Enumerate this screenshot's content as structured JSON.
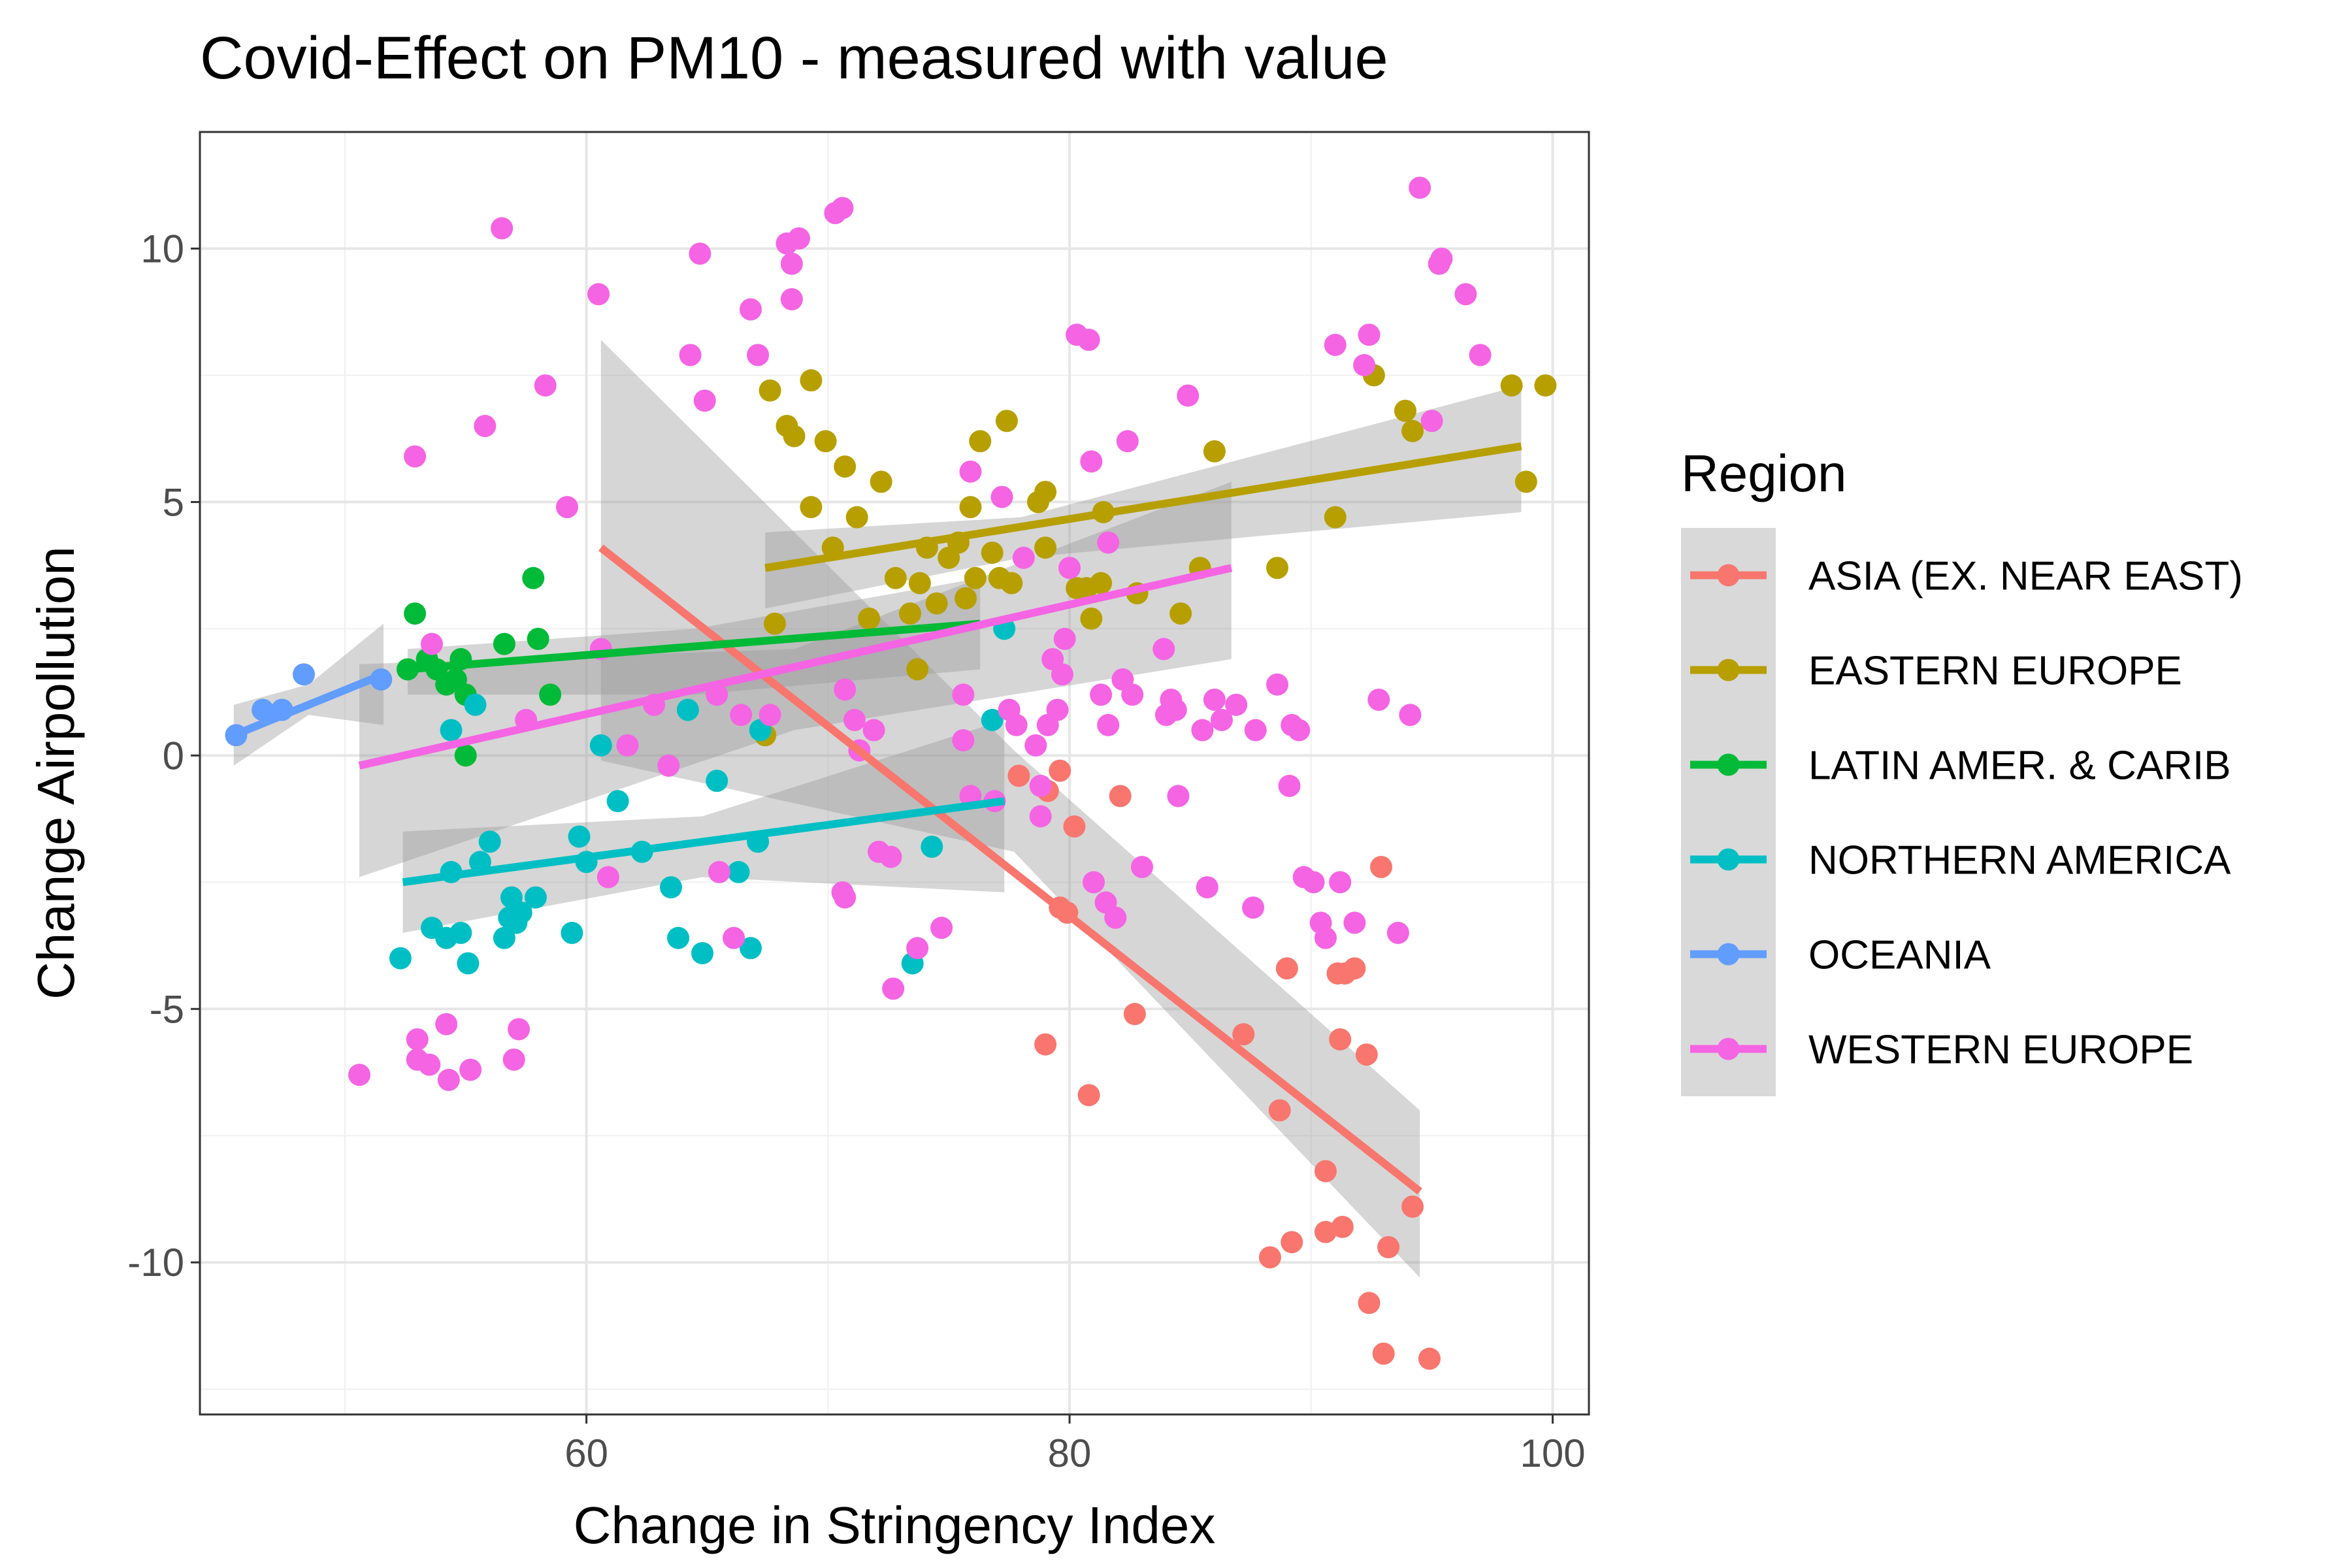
{
  "chart_data": {
    "type": "scatter",
    "title": "Covid-Effect on PM10 - measured with value",
    "xlabel": "Change in Stringency Index",
    "ylabel": "Change Airpollution",
    "xlim": [
      44,
      101.5
    ],
    "ylim": [
      -13,
      12.3
    ],
    "x_ticks": [
      60,
      80,
      100
    ],
    "x_tick_labels": [
      "60",
      "80",
      "100"
    ],
    "y_ticks": [
      -10,
      -5,
      0,
      5,
      10
    ],
    "y_tick_labels": [
      "-10",
      "-5",
      "0",
      "5",
      "10"
    ],
    "grid": true,
    "legend_title": "Region",
    "legend_position": "right",
    "series": [
      {
        "name": "ASIA (EX. NEAR EAST)",
        "color": "#F8766D",
        "points": [
          [
            77.9,
            -0.4
          ],
          [
            79.1,
            -0.7
          ],
          [
            79.6,
            -0.3
          ],
          [
            79.6,
            -3.0
          ],
          [
            79.9,
            -3.1
          ],
          [
            80.2,
            -1.4
          ],
          [
            82.1,
            -0.8
          ],
          [
            82.7,
            -5.1
          ],
          [
            79.0,
            -5.7
          ],
          [
            80.8,
            -6.7
          ],
          [
            87.2,
            -5.5
          ],
          [
            88.3,
            -9.9
          ],
          [
            88.7,
            -7.0
          ],
          [
            89.0,
            -4.2
          ],
          [
            89.2,
            -9.6
          ],
          [
            90.6,
            -8.2
          ],
          [
            90.6,
            -9.4
          ],
          [
            91.1,
            -4.3
          ],
          [
            91.3,
            -9.3
          ],
          [
            91.2,
            -5.6
          ],
          [
            91.4,
            -4.3
          ],
          [
            91.8,
            -4.2
          ],
          [
            92.3,
            -5.9
          ],
          [
            92.4,
            -10.8
          ],
          [
            92.9,
            -2.2
          ],
          [
            93.0,
            -11.8
          ],
          [
            93.2,
            -9.7
          ],
          [
            94.2,
            -8.9
          ],
          [
            94.9,
            -11.9
          ]
        ],
        "trend": {
          "x": [
            60.6,
            94.5
          ],
          "y": [
            4.1,
            -8.6
          ]
        },
        "ribbon": {
          "x": [
            60.6,
            77.7,
            94.5
          ],
          "upper": [
            8.2,
            0.1,
            -7.0
          ],
          "lower": [
            -0.1,
            -1.9,
            -10.3
          ]
        }
      },
      {
        "name": "EASTERN EUROPE",
        "color": "#B79F00",
        "points": [
          [
            67.4,
            0.4
          ],
          [
            67.6,
            7.2
          ],
          [
            67.8,
            2.6
          ],
          [
            68.3,
            6.5
          ],
          [
            68.6,
            6.3
          ],
          [
            69.3,
            4.9
          ],
          [
            69.3,
            7.4
          ],
          [
            69.9,
            6.2
          ],
          [
            70.2,
            4.1
          ],
          [
            70.7,
            5.7
          ],
          [
            71.2,
            4.7
          ],
          [
            71.7,
            2.7
          ],
          [
            72.2,
            5.4
          ],
          [
            72.8,
            3.5
          ],
          [
            73.4,
            2.8
          ],
          [
            73.7,
            1.7
          ],
          [
            73.8,
            3.4
          ],
          [
            74.1,
            4.1
          ],
          [
            74.5,
            3.0
          ],
          [
            75.0,
            3.9
          ],
          [
            75.4,
            4.2
          ],
          [
            75.7,
            3.1
          ],
          [
            75.9,
            4.9
          ],
          [
            76.1,
            3.5
          ],
          [
            76.3,
            6.2
          ],
          [
            76.8,
            4.0
          ],
          [
            77.1,
            3.5
          ],
          [
            77.4,
            6.6
          ],
          [
            77.6,
            3.4
          ],
          [
            78.7,
            5.0
          ],
          [
            79.0,
            4.1
          ],
          [
            79.0,
            5.2
          ],
          [
            80.3,
            3.3
          ],
          [
            80.7,
            3.3
          ],
          [
            80.9,
            2.7
          ],
          [
            81.3,
            3.4
          ],
          [
            81.4,
            4.8
          ],
          [
            82.8,
            3.2
          ],
          [
            84.6,
            2.8
          ],
          [
            85.4,
            3.7
          ],
          [
            86.0,
            6.0
          ],
          [
            88.6,
            3.7
          ],
          [
            91.0,
            4.7
          ],
          [
            92.6,
            7.5
          ],
          [
            93.9,
            6.8
          ],
          [
            94.2,
            6.4
          ],
          [
            98.3,
            7.3
          ],
          [
            98.9,
            5.4
          ],
          [
            99.7,
            7.3
          ]
        ],
        "trend": {
          "x": [
            67.4,
            98.7
          ],
          "y": [
            3.7,
            6.1
          ]
        },
        "ribbon": {
          "x": [
            67.4,
            78.0,
            98.7
          ],
          "upper": [
            4.4,
            4.7,
            7.3
          ],
          "lower": [
            2.9,
            3.9,
            4.8
          ]
        }
      },
      {
        "name": "LATIN AMER. & CARIB",
        "color": "#00BA38",
        "points": [
          [
            52.6,
            1.7
          ],
          [
            52.9,
            2.8
          ],
          [
            53.4,
            1.9
          ],
          [
            53.8,
            1.7
          ],
          [
            54.2,
            1.4
          ],
          [
            54.6,
            1.5
          ],
          [
            54.8,
            1.9
          ],
          [
            55.0,
            1.2
          ],
          [
            55.0,
            0.0
          ],
          [
            56.6,
            2.2
          ],
          [
            57.8,
            3.5
          ],
          [
            58.0,
            2.3
          ],
          [
            58.5,
            1.2
          ]
        ],
        "trend": {
          "x": [
            52.6,
            76.3
          ],
          "y": [
            1.7,
            2.6
          ]
        },
        "ribbon": {
          "x": [
            52.6,
            64.5,
            76.3
          ],
          "upper": [
            2.1,
            2.5,
            3.5
          ],
          "lower": [
            1.2,
            1.2,
            1.7
          ]
        }
      },
      {
        "name": "NORTHERN AMERICA",
        "color": "#00BFC4",
        "points": [
          [
            52.3,
            -4.0
          ],
          [
            53.6,
            -3.4
          ],
          [
            54.2,
            -3.6
          ],
          [
            54.4,
            0.5
          ],
          [
            54.4,
            -2.3
          ],
          [
            54.8,
            -3.5
          ],
          [
            55.1,
            -4.1
          ],
          [
            55.4,
            1.0
          ],
          [
            55.6,
            -2.1
          ],
          [
            56.0,
            -1.7
          ],
          [
            56.6,
            -3.6
          ],
          [
            56.8,
            -3.2
          ],
          [
            56.9,
            -2.8
          ],
          [
            57.1,
            -3.3
          ],
          [
            57.3,
            -3.1
          ],
          [
            57.9,
            -2.8
          ],
          [
            59.4,
            -3.5
          ],
          [
            59.7,
            -1.6
          ],
          [
            60.0,
            -2.1
          ],
          [
            60.6,
            0.2
          ],
          [
            61.3,
            -0.9
          ],
          [
            62.3,
            -1.9
          ],
          [
            63.5,
            -2.6
          ],
          [
            63.8,
            -3.6
          ],
          [
            64.2,
            0.9
          ],
          [
            64.8,
            -3.9
          ],
          [
            65.4,
            -0.5
          ],
          [
            66.3,
            -2.3
          ],
          [
            66.8,
            -3.8
          ],
          [
            67.1,
            -1.7
          ],
          [
            67.2,
            0.5
          ],
          [
            73.5,
            -4.1
          ],
          [
            74.3,
            -1.8
          ],
          [
            76.8,
            0.7
          ],
          [
            77.3,
            2.5
          ]
        ],
        "trend": {
          "x": [
            52.4,
            77.3
          ],
          "y": [
            -2.5,
            -0.9
          ]
        },
        "ribbon": {
          "x": [
            52.4,
            64.8,
            77.3
          ],
          "upper": [
            -1.5,
            -1.2,
            0.7
          ],
          "lower": [
            -3.5,
            -2.4,
            -2.7
          ]
        }
      },
      {
        "name": "OCEANIA",
        "color": "#619CFF",
        "points": [
          [
            45.5,
            0.4
          ],
          [
            46.6,
            0.9
          ],
          [
            47.4,
            0.9
          ],
          [
            48.3,
            1.6
          ],
          [
            51.5,
            1.5
          ]
        ],
        "trend": {
          "x": [
            45.4,
            51.6
          ],
          "y": [
            0.4,
            1.6
          ]
        },
        "ribbon": {
          "x": [
            45.4,
            48.5,
            51.6
          ],
          "upper": [
            1.0,
            1.4,
            2.6
          ],
          "lower": [
            -0.2,
            0.8,
            0.6
          ]
        }
      },
      {
        "name": "WESTERN EUROPE",
        "color": "#F564E3",
        "points": [
          [
            50.6,
            -6.3
          ],
          [
            52.9,
            5.9
          ],
          [
            53.0,
            -5.6
          ],
          [
            53.0,
            -6.0
          ],
          [
            53.5,
            -6.1
          ],
          [
            53.6,
            2.2
          ],
          [
            54.2,
            -5.3
          ],
          [
            54.3,
            -6.4
          ],
          [
            55.2,
            -6.2
          ],
          [
            55.8,
            6.5
          ],
          [
            56.5,
            10.4
          ],
          [
            57.0,
            -6.0
          ],
          [
            57.2,
            -5.4
          ],
          [
            57.5,
            0.7
          ],
          [
            58.3,
            7.3
          ],
          [
            59.2,
            4.9
          ],
          [
            60.5,
            9.1
          ],
          [
            60.6,
            2.1
          ],
          [
            60.9,
            -2.4
          ],
          [
            61.7,
            0.2
          ],
          [
            62.8,
            1.0
          ],
          [
            63.4,
            -0.2
          ],
          [
            64.3,
            7.9
          ],
          [
            64.7,
            9.9
          ],
          [
            64.9,
            7.0
          ],
          [
            65.4,
            1.2
          ],
          [
            65.5,
            -2.3
          ],
          [
            66.1,
            -3.6
          ],
          [
            66.4,
            0.8
          ],
          [
            66.8,
            8.8
          ],
          [
            67.1,
            7.9
          ],
          [
            67.6,
            0.8
          ],
          [
            68.3,
            10.1
          ],
          [
            68.5,
            9.7
          ],
          [
            68.5,
            9.0
          ],
          [
            68.8,
            10.2
          ],
          [
            70.3,
            10.7
          ],
          [
            70.6,
            10.8
          ],
          [
            70.6,
            -2.7
          ],
          [
            70.7,
            -2.8
          ],
          [
            70.7,
            1.3
          ],
          [
            71.1,
            0.7
          ],
          [
            71.3,
            0.1
          ],
          [
            71.9,
            0.5
          ],
          [
            72.1,
            -1.9
          ],
          [
            72.6,
            -2.0
          ],
          [
            72.7,
            -4.6
          ],
          [
            73.7,
            -3.8
          ],
          [
            74.7,
            -3.4
          ],
          [
            75.6,
            1.2
          ],
          [
            75.6,
            0.3
          ],
          [
            75.9,
            5.6
          ],
          [
            75.9,
            -0.8
          ],
          [
            76.9,
            -0.9
          ],
          [
            77.2,
            5.1
          ],
          [
            77.5,
            0.9
          ],
          [
            77.8,
            0.6
          ],
          [
            78.1,
            3.9
          ],
          [
            78.6,
            0.2
          ],
          [
            78.8,
            -0.6
          ],
          [
            78.8,
            -1.2
          ],
          [
            79.1,
            0.6
          ],
          [
            79.3,
            1.9
          ],
          [
            79.5,
            0.9
          ],
          [
            79.7,
            1.6
          ],
          [
            79.8,
            2.3
          ],
          [
            80.0,
            3.7
          ],
          [
            80.3,
            8.3
          ],
          [
            80.8,
            8.2
          ],
          [
            80.9,
            5.8
          ],
          [
            81.0,
            -2.5
          ],
          [
            81.3,
            1.2
          ],
          [
            81.5,
            -2.9
          ],
          [
            81.6,
            0.6
          ],
          [
            81.6,
            4.2
          ],
          [
            81.9,
            -3.2
          ],
          [
            82.2,
            1.5
          ],
          [
            82.4,
            6.2
          ],
          [
            82.6,
            1.2
          ],
          [
            83.0,
            -2.2
          ],
          [
            83.9,
            2.1
          ],
          [
            84.0,
            0.8
          ],
          [
            84.2,
            1.1
          ],
          [
            84.4,
            0.9
          ],
          [
            84.5,
            -0.8
          ],
          [
            84.9,
            7.1
          ],
          [
            85.5,
            0.5
          ],
          [
            85.7,
            -2.6
          ],
          [
            86.0,
            1.1
          ],
          [
            86.3,
            0.7
          ],
          [
            86.9,
            1.0
          ],
          [
            87.6,
            -3.0
          ],
          [
            87.7,
            0.5
          ],
          [
            88.6,
            1.4
          ],
          [
            89.1,
            -0.6
          ],
          [
            89.2,
            0.6
          ],
          [
            89.5,
            0.5
          ],
          [
            89.7,
            -2.4
          ],
          [
            90.1,
            -2.5
          ],
          [
            90.4,
            -3.3
          ],
          [
            90.6,
            -3.6
          ],
          [
            91.0,
            8.1
          ],
          [
            91.2,
            -2.5
          ],
          [
            91.8,
            -3.3
          ],
          [
            92.2,
            7.7
          ],
          [
            92.4,
            8.3
          ],
          [
            92.8,
            1.1
          ],
          [
            93.6,
            -3.5
          ],
          [
            94.1,
            0.8
          ],
          [
            94.5,
            11.2
          ],
          [
            95.0,
            6.6
          ],
          [
            95.3,
            9.7
          ],
          [
            95.4,
            9.8
          ],
          [
            96.4,
            9.1
          ],
          [
            97.0,
            7.9
          ]
        ],
        "trend": {
          "x": [
            50.6,
            86.7
          ],
          "y": [
            -0.2,
            3.7
          ]
        },
        "ribbon": {
          "x": [
            50.6,
            68.6,
            86.7
          ],
          "upper": [
            1.8,
            2.1,
            5.4
          ],
          "lower": [
            -2.4,
            0.5,
            1.9
          ]
        }
      }
    ]
  }
}
